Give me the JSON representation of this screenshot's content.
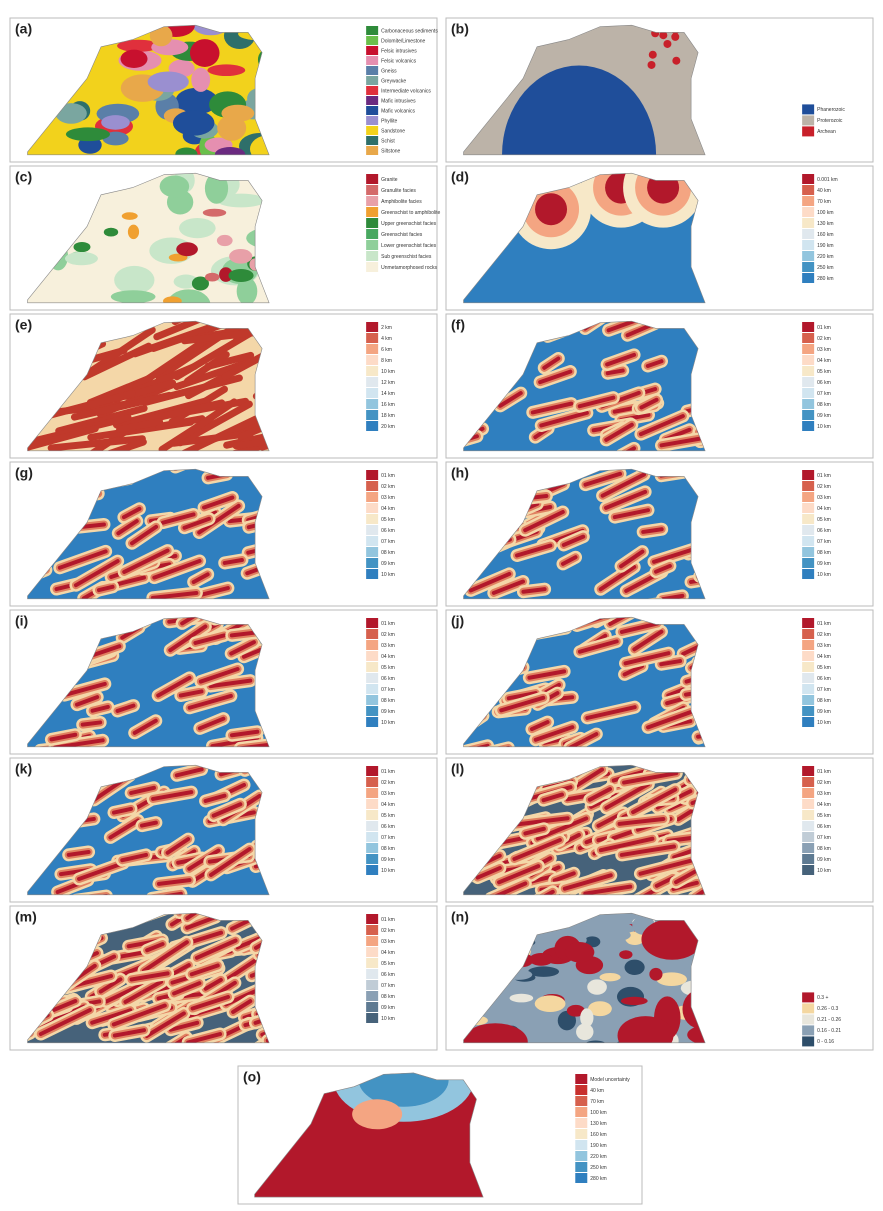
{
  "panels": [
    {
      "label": "(a)",
      "legend": [
        {
          "text": "Carbonaceous sediments",
          "color": "#2e8b3a"
        },
        {
          "text": "Dolomite/Limestone",
          "color": "#6abf4b"
        },
        {
          "text": "Felsic intrusives",
          "color": "#c8102e"
        },
        {
          "text": "Felsic volcanics",
          "color": "#e58fb0"
        },
        {
          "text": "Gneiss",
          "color": "#5a7fa8"
        },
        {
          "text": "Greywacke",
          "color": "#7aa6a0"
        },
        {
          "text": "Intermediate volcanics",
          "color": "#e0303c"
        },
        {
          "text": "Mafic intrusives",
          "color": "#6a2a80"
        },
        {
          "text": "Mafic volcanics",
          "color": "#1f4e9a"
        },
        {
          "text": "Phyllite",
          "color": "#9a8fd0"
        },
        {
          "text": "Sandstone",
          "color": "#f2d21c"
        },
        {
          "text": "Schist",
          "color": "#2e6f6a"
        },
        {
          "text": "Siltstone",
          "color": "#e8a84a"
        }
      ]
    },
    {
      "label": "(b)",
      "legend": [
        {
          "text": "Phanerozoic",
          "color": "#1f4e9a"
        },
        {
          "text": "Proterozoic",
          "color": "#bcb3a8"
        },
        {
          "text": "Archean",
          "color": "#c8202a"
        }
      ]
    },
    {
      "label": "(c)",
      "legend": [
        {
          "text": "Granite",
          "color": "#b2182b"
        },
        {
          "text": "Granulite facies",
          "color": "#d46a6a"
        },
        {
          "text": "Amphibolite facies",
          "color": "#e8a0a8"
        },
        {
          "text": "Greenschist to amphibolite",
          "color": "#f0a030"
        },
        {
          "text": "Upper greenschist facies",
          "color": "#2e8b3a"
        },
        {
          "text": "Greenschist facies",
          "color": "#48a860"
        },
        {
          "text": "Lower greenschist facies",
          "color": "#8fcf9a"
        },
        {
          "text": "Sub greenschist facies",
          "color": "#c8e6c9"
        },
        {
          "text": "Unmetamorphosed rocks",
          "color": "#f7f0dc"
        }
      ]
    },
    {
      "label": "(d)",
      "legend": [
        {
          "text": "0.001 km",
          "color": "#b2182b"
        },
        {
          "text": "40 km",
          "color": "#d6604d"
        },
        {
          "text": "70 km",
          "color": "#f4a582"
        },
        {
          "text": "100 km",
          "color": "#fddbc7"
        },
        {
          "text": "130 km",
          "color": "#f7e8c8"
        },
        {
          "text": "160 km",
          "color": "#e0e8ee"
        },
        {
          "text": "190 km",
          "color": "#d1e5f0"
        },
        {
          "text": "220 km",
          "color": "#92c5de"
        },
        {
          "text": "250 km",
          "color": "#4393c3"
        },
        {
          "text": "280 km",
          "color": "#2f7fbf"
        }
      ]
    },
    {
      "label": "(e)",
      "legend": [
        {
          "text": "2 km",
          "color": "#b2182b"
        },
        {
          "text": "4 km",
          "color": "#d6604d"
        },
        {
          "text": "6 km",
          "color": "#f4a582"
        },
        {
          "text": "8 km",
          "color": "#fddbc7"
        },
        {
          "text": "10 km",
          "color": "#f7e8c8"
        },
        {
          "text": "12 km",
          "color": "#e0e8ee"
        },
        {
          "text": "14 km",
          "color": "#d1e5f0"
        },
        {
          "text": "16 km",
          "color": "#92c5de"
        },
        {
          "text": "18 km",
          "color": "#4393c3"
        },
        {
          "text": "20 km",
          "color": "#2f7fbf"
        }
      ]
    },
    {
      "label": "(f)",
      "legend": [
        {
          "text": "01 km",
          "color": "#b2182b"
        },
        {
          "text": "02 km",
          "color": "#d6604d"
        },
        {
          "text": "03 km",
          "color": "#f4a582"
        },
        {
          "text": "04 km",
          "color": "#fddbc7"
        },
        {
          "text": "05 km",
          "color": "#f7e8c8"
        },
        {
          "text": "06 km",
          "color": "#e0e8ee"
        },
        {
          "text": "07 km",
          "color": "#d1e5f0"
        },
        {
          "text": "08 km",
          "color": "#92c5de"
        },
        {
          "text": "09 km",
          "color": "#4393c3"
        },
        {
          "text": "10 km",
          "color": "#2f7fbf"
        }
      ]
    },
    {
      "label": "(g)",
      "legend": [
        {
          "text": "01 km",
          "color": "#b2182b"
        },
        {
          "text": "02 km",
          "color": "#d6604d"
        },
        {
          "text": "03 km",
          "color": "#f4a582"
        },
        {
          "text": "04 km",
          "color": "#fddbc7"
        },
        {
          "text": "05 km",
          "color": "#f7e8c8"
        },
        {
          "text": "06 km",
          "color": "#e0e8ee"
        },
        {
          "text": "07 km",
          "color": "#d1e5f0"
        },
        {
          "text": "08 km",
          "color": "#92c5de"
        },
        {
          "text": "09 km",
          "color": "#4393c3"
        },
        {
          "text": "10 km",
          "color": "#2f7fbf"
        }
      ]
    },
    {
      "label": "(h)",
      "legend": [
        {
          "text": "01 km",
          "color": "#b2182b"
        },
        {
          "text": "02 km",
          "color": "#d6604d"
        },
        {
          "text": "03 km",
          "color": "#f4a582"
        },
        {
          "text": "04 km",
          "color": "#fddbc7"
        },
        {
          "text": "05 km",
          "color": "#f7e8c8"
        },
        {
          "text": "06 km",
          "color": "#e0e8ee"
        },
        {
          "text": "07 km",
          "color": "#d1e5f0"
        },
        {
          "text": "08 km",
          "color": "#92c5de"
        },
        {
          "text": "09 km",
          "color": "#4393c3"
        },
        {
          "text": "10 km",
          "color": "#2f7fbf"
        }
      ]
    },
    {
      "label": "(i)",
      "legend": [
        {
          "text": "01 km",
          "color": "#b2182b"
        },
        {
          "text": "02 km",
          "color": "#d6604d"
        },
        {
          "text": "03 km",
          "color": "#f4a582"
        },
        {
          "text": "04 km",
          "color": "#fddbc7"
        },
        {
          "text": "05 km",
          "color": "#f7e8c8"
        },
        {
          "text": "06 km",
          "color": "#e0e8ee"
        },
        {
          "text": "07 km",
          "color": "#d1e5f0"
        },
        {
          "text": "08 km",
          "color": "#92c5de"
        },
        {
          "text": "09 km",
          "color": "#4393c3"
        },
        {
          "text": "10 km",
          "color": "#2f7fbf"
        }
      ]
    },
    {
      "label": "(j)",
      "legend": [
        {
          "text": "01 km",
          "color": "#b2182b"
        },
        {
          "text": "02 km",
          "color": "#d6604d"
        },
        {
          "text": "03 km",
          "color": "#f4a582"
        },
        {
          "text": "04 km",
          "color": "#fddbc7"
        },
        {
          "text": "05 km",
          "color": "#f7e8c8"
        },
        {
          "text": "06 km",
          "color": "#e0e8ee"
        },
        {
          "text": "07 km",
          "color": "#d1e5f0"
        },
        {
          "text": "08 km",
          "color": "#92c5de"
        },
        {
          "text": "09 km",
          "color": "#4393c3"
        },
        {
          "text": "10 km",
          "color": "#2f7fbf"
        }
      ]
    },
    {
      "label": "(k)",
      "legend": [
        {
          "text": "01 km",
          "color": "#b2182b"
        },
        {
          "text": "02 km",
          "color": "#d6604d"
        },
        {
          "text": "03 km",
          "color": "#f4a582"
        },
        {
          "text": "04 km",
          "color": "#fddbc7"
        },
        {
          "text": "05 km",
          "color": "#f7e8c8"
        },
        {
          "text": "06 km",
          "color": "#e0e8ee"
        },
        {
          "text": "07 km",
          "color": "#d1e5f0"
        },
        {
          "text": "08 km",
          "color": "#92c5de"
        },
        {
          "text": "09 km",
          "color": "#4393c3"
        },
        {
          "text": "10 km",
          "color": "#2f7fbf"
        }
      ]
    },
    {
      "label": "(l)",
      "legend": [
        {
          "text": "01 km",
          "color": "#b2182b"
        },
        {
          "text": "02 km",
          "color": "#d6604d"
        },
        {
          "text": "03 km",
          "color": "#f4a582"
        },
        {
          "text": "04 km",
          "color": "#fddbc7"
        },
        {
          "text": "05 km",
          "color": "#f7e8c8"
        },
        {
          "text": "06 km",
          "color": "#e0e8ee"
        },
        {
          "text": "07 km",
          "color": "#c0ccd6"
        },
        {
          "text": "08 km",
          "color": "#8aa0b4"
        },
        {
          "text": "09 km",
          "color": "#5e7a92"
        },
        {
          "text": "10 km",
          "color": "#46627a"
        }
      ]
    },
    {
      "label": "(m)",
      "legend": [
        {
          "text": "01 km",
          "color": "#b2182b"
        },
        {
          "text": "02 km",
          "color": "#d6604d"
        },
        {
          "text": "03 km",
          "color": "#f4a582"
        },
        {
          "text": "04 km",
          "color": "#fddbc7"
        },
        {
          "text": "05 km",
          "color": "#f7e8c8"
        },
        {
          "text": "06 km",
          "color": "#e0e8ee"
        },
        {
          "text": "07 km",
          "color": "#c0ccd6"
        },
        {
          "text": "08 km",
          "color": "#8aa0b4"
        },
        {
          "text": "09 km",
          "color": "#5e7a92"
        },
        {
          "text": "10 km",
          "color": "#46627a"
        }
      ]
    },
    {
      "label": "(n)",
      "legend": [
        {
          "text": "0.3 +",
          "color": "#b2182b"
        },
        {
          "text": "0.26 - 0.3",
          "color": "#f4d7a0"
        },
        {
          "text": "0.21 - 0.26",
          "color": "#e8e6dc"
        },
        {
          "text": "0.16 - 0.21",
          "color": "#8aa0b4"
        },
        {
          "text": "0 - 0.16",
          "color": "#2e4e6a"
        }
      ]
    },
    {
      "label": "(o)",
      "legend": [
        {
          "text": "Model uncertainty",
          "color": "#b2182b"
        },
        {
          "text": "40 km",
          "color": "#c8302e"
        },
        {
          "text": "70 km",
          "color": "#d6604d"
        },
        {
          "text": "100 km",
          "color": "#f4a582"
        },
        {
          "text": "130 km",
          "color": "#fddbc7"
        },
        {
          "text": "160 km",
          "color": "#f7e8c8"
        },
        {
          "text": "190 km",
          "color": "#d1e5f0"
        },
        {
          "text": "220 km",
          "color": "#92c5de"
        },
        {
          "text": "250 km",
          "color": "#4393c3"
        },
        {
          "text": "280 km",
          "color": "#2f7fbf"
        }
      ]
    }
  ]
}
